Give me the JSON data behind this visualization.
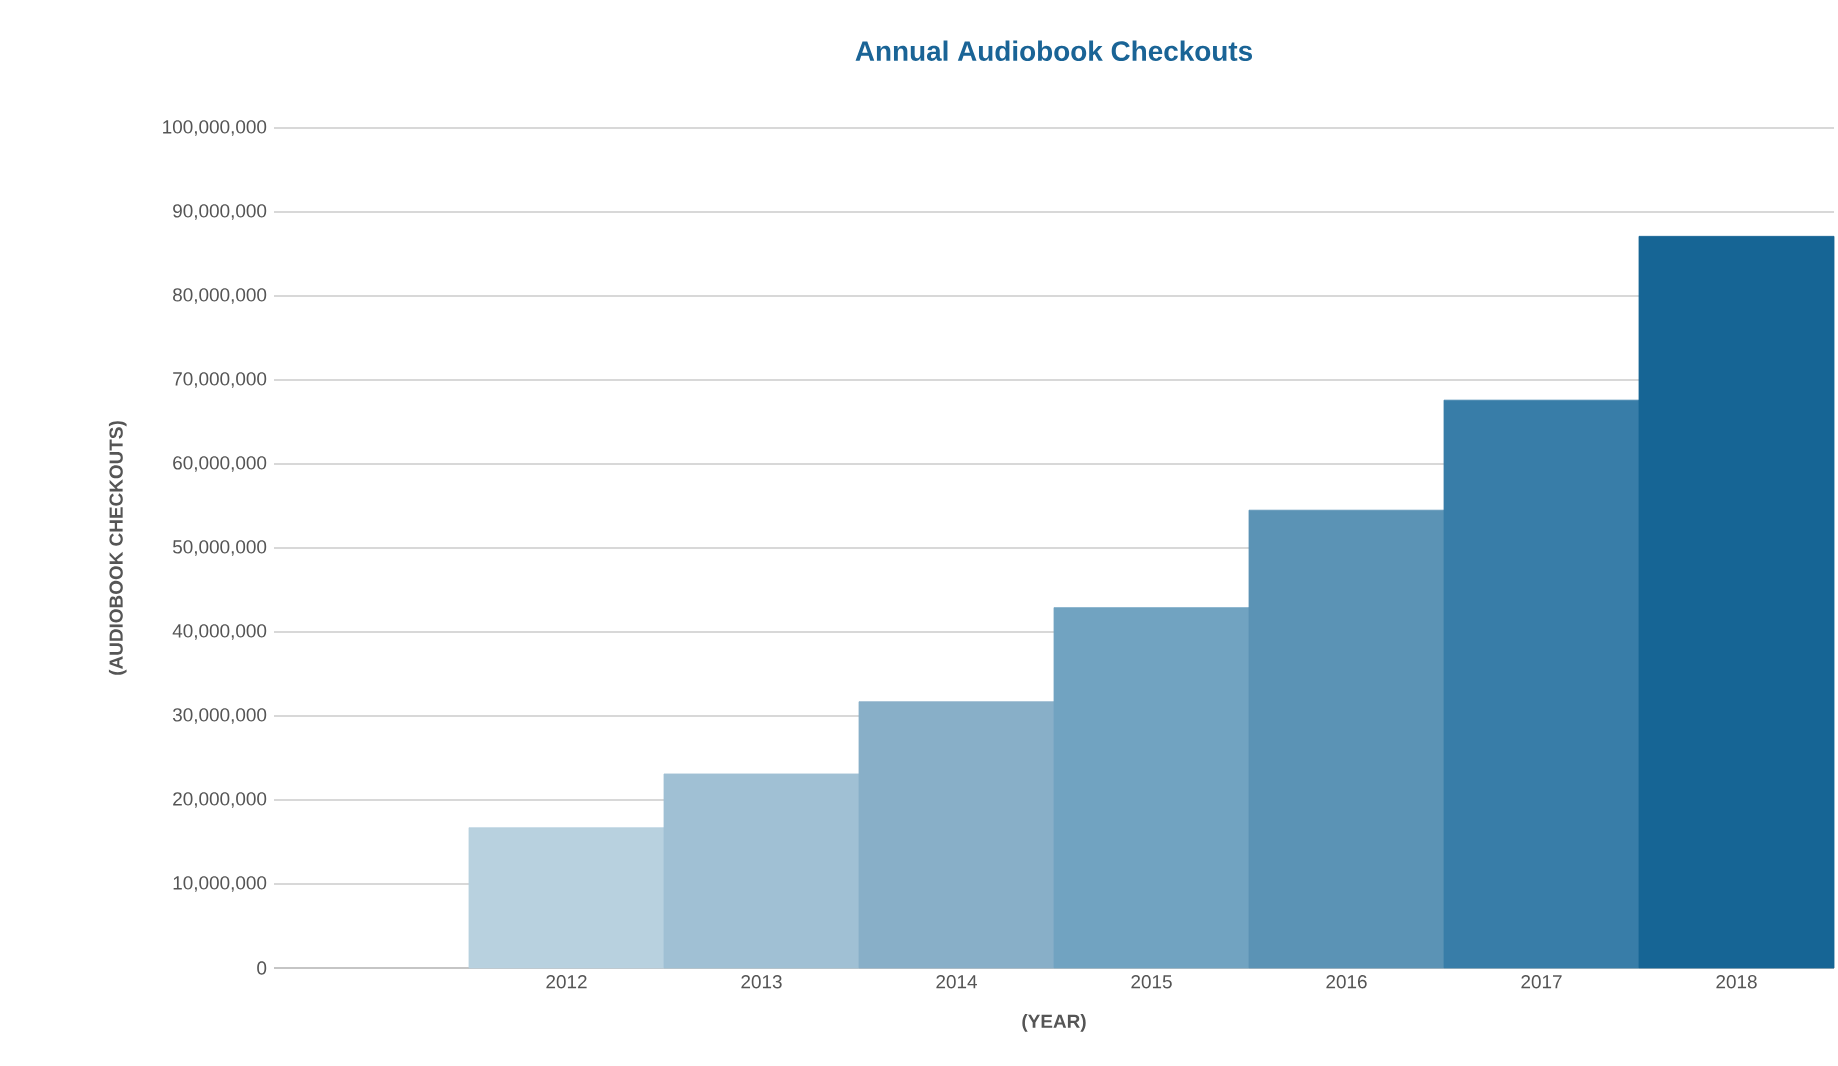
{
  "chart_data": {
    "type": "bar",
    "title": "Annual Audiobook Checkouts",
    "xlabel": "(YEAR)",
    "ylabel": "(AUDIOBOOK CHECKOUTS)",
    "categories": [
      null,
      "2012",
      "2013",
      "2014",
      "2015",
      "2016",
      "2017",
      "2018"
    ],
    "values": [
      null,
      16700000,
      23100000,
      31700000,
      42900000,
      54500000,
      67600000,
      87100000
    ],
    "colors": [
      null,
      "#b8d1df",
      "#a0c0d4",
      "#88afc8",
      "#71a3c1",
      "#5b93b5",
      "#387da8",
      "#166595"
    ],
    "ylim": [
      0,
      100000000
    ],
    "yticks": [
      0,
      {
        "value": 10000000,
        "label": "10,000,000"
      },
      {
        "value": 20000000,
        "label": "20,000,000"
      },
      {
        "value": 30000000,
        "label": "30,000,000"
      },
      {
        "value": 40000000,
        "label": "40,000,000"
      },
      {
        "value": 50000000,
        "label": "50,000,000"
      },
      {
        "value": 60000000,
        "label": "60,000,000"
      },
      {
        "value": 70000000,
        "label": "70,000,000"
      },
      {
        "value": 80000000,
        "label": "80,000,000"
      },
      {
        "value": 90000000,
        "label": "90,000,000"
      },
      {
        "value": 100000000,
        "label": "100,000,000"
      }
    ],
    "grid": "y"
  }
}
